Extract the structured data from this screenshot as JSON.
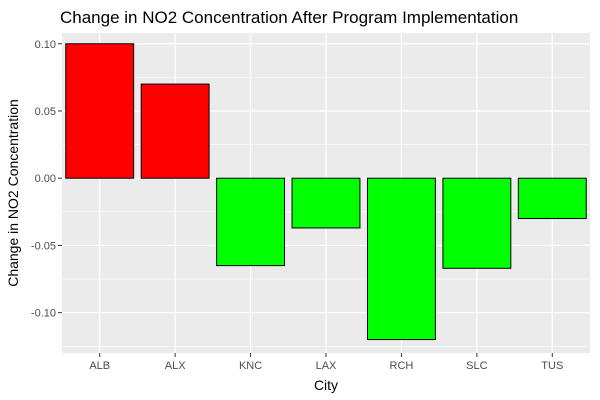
{
  "chart_data": {
    "type": "bar",
    "title": "Change in NO2 Concentration After Program Implementation",
    "xlabel": "City",
    "ylabel": "Change in NO2 Concentration",
    "categories": [
      "ALB",
      "ALX",
      "KNC",
      "LAX",
      "RCH",
      "SLC",
      "TUS"
    ],
    "values": [
      0.1,
      0.07,
      -0.065,
      -0.037,
      -0.12,
      -0.067,
      -0.03
    ],
    "ylim": [
      -0.13,
      0.108
    ],
    "yticks": [
      0.1,
      0.05,
      0.0,
      -0.05,
      -0.1
    ],
    "ytick_labels": [
      "0.10",
      "0.05",
      "0.00",
      "-0.05",
      "-0.10"
    ],
    "grid": true,
    "colors": {
      "positive": "#ff0000",
      "negative": "#00ff00",
      "panel": "#ebebeb",
      "grid": "#ffffff",
      "bar_outline": "#000000"
    }
  }
}
